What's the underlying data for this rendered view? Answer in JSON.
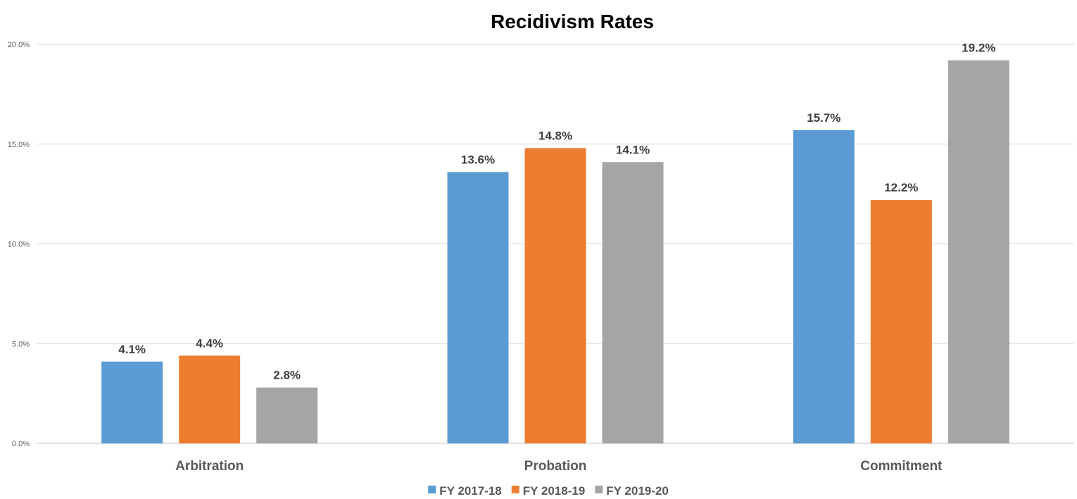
{
  "chart_data": {
    "type": "bar",
    "title": "Recidivism Rates",
    "xlabel": "",
    "ylabel": "",
    "categories": [
      "Arbitration",
      "Probation",
      "Commitment"
    ],
    "series": [
      {
        "name": "FY 2017-18",
        "values": [
          4.1,
          13.6,
          15.7
        ],
        "labels": [
          "4.1%",
          "13.6%",
          "15.7%"
        ],
        "color": "#5b9bd5"
      },
      {
        "name": "FY 2018-19",
        "values": [
          4.4,
          14.8,
          12.2
        ],
        "labels": [
          "4.4%",
          "14.8%",
          "12.2%"
        ],
        "color": "#ed7d31"
      },
      {
        "name": "FY 2019-20",
        "values": [
          2.8,
          14.1,
          19.2
        ],
        "labels": [
          "2.8%",
          "14.1%",
          "19.2%"
        ],
        "color": "#a5a5a5"
      }
    ],
    "ylim": [
      0,
      20
    ],
    "yticks": [
      0,
      5,
      10,
      15,
      20
    ],
    "ytick_labels": [
      "0.0%",
      "5.0%",
      "10.0%",
      "15.0%",
      "20.0%"
    ],
    "grid": true,
    "legend": "bottom"
  }
}
